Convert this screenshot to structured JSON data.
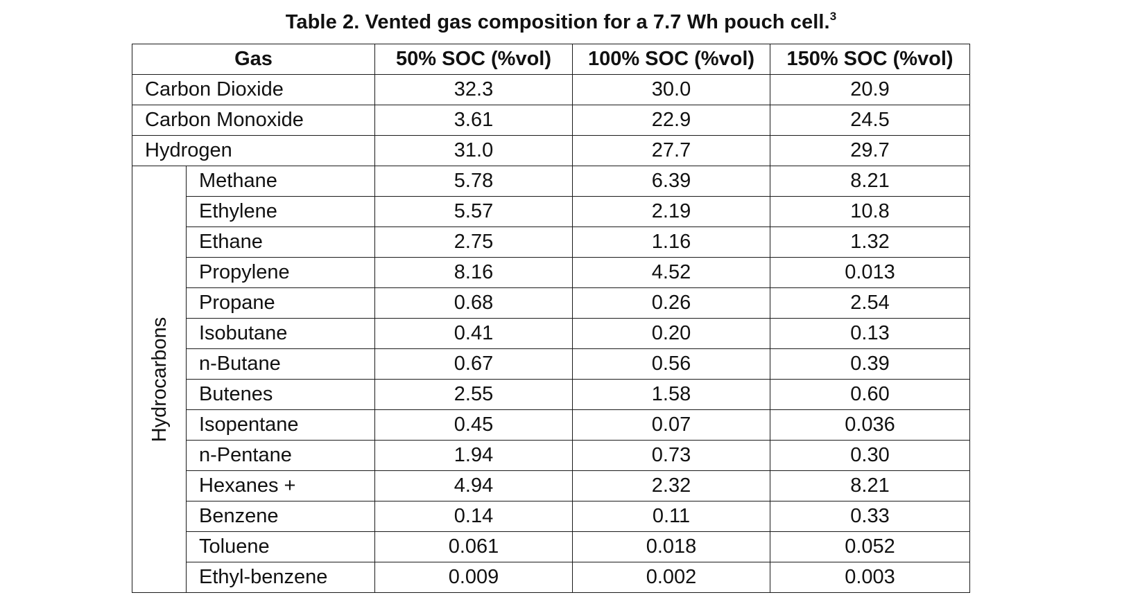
{
  "title": "Table 2. Vented gas composition for a 7.7 Wh pouch cell.",
  "title_ref": "3",
  "headers": {
    "gas": "Gas",
    "soc50": "50% SOC (%vol)",
    "soc100": "100% SOC (%vol)",
    "soc150": "150% SOC (%vol)"
  },
  "top_rows": [
    {
      "gas": "Carbon Dioxide",
      "soc50": "32.3",
      "soc100": "30.0",
      "soc150": "20.9"
    },
    {
      "gas": "Carbon Monoxide",
      "soc50": "3.61",
      "soc100": "22.9",
      "soc150": "24.5"
    },
    {
      "gas": "Hydrogen",
      "soc50": "31.0",
      "soc100": "27.7",
      "soc150": "29.7"
    }
  ],
  "hydrocarbons_label": "Hydrocarbons",
  "hydrocarbon_rows": [
    {
      "gas": "Methane",
      "soc50": "5.78",
      "soc100": "6.39",
      "soc150": "8.21"
    },
    {
      "gas": "Ethylene",
      "soc50": "5.57",
      "soc100": "2.19",
      "soc150": "10.8"
    },
    {
      "gas": "Ethane",
      "soc50": "2.75",
      "soc100": "1.16",
      "soc150": "1.32"
    },
    {
      "gas": "Propylene",
      "soc50": "8.16",
      "soc100": "4.52",
      "soc150": "0.013"
    },
    {
      "gas": "Propane",
      "soc50": "0.68",
      "soc100": "0.26",
      "soc150": "2.54"
    },
    {
      "gas": "Isobutane",
      "soc50": "0.41",
      "soc100": "0.20",
      "soc150": "0.13"
    },
    {
      "gas": "n-Butane",
      "soc50": "0.67",
      "soc100": "0.56",
      "soc150": "0.39"
    },
    {
      "gas": "Butenes",
      "soc50": "2.55",
      "soc100": "1.58",
      "soc150": "0.60"
    },
    {
      "gas": "Isopentane",
      "soc50": "0.45",
      "soc100": "0.07",
      "soc150": "0.036"
    },
    {
      "gas": "n-Pentane",
      "soc50": "1.94",
      "soc100": "0.73",
      "soc150": "0.30"
    },
    {
      "gas": "Hexanes +",
      "soc50": "4.94",
      "soc100": "2.32",
      "soc150": "8.21"
    },
    {
      "gas": "Benzene",
      "soc50": "0.14",
      "soc100": "0.11",
      "soc150": "0.33"
    },
    {
      "gas": "Toluene",
      "soc50": "0.061",
      "soc100": "0.018",
      "soc150": "0.052"
    },
    {
      "gas": "Ethyl-benzene",
      "soc50": "0.009",
      "soc100": "0.002",
      "soc150": "0.003"
    }
  ]
}
